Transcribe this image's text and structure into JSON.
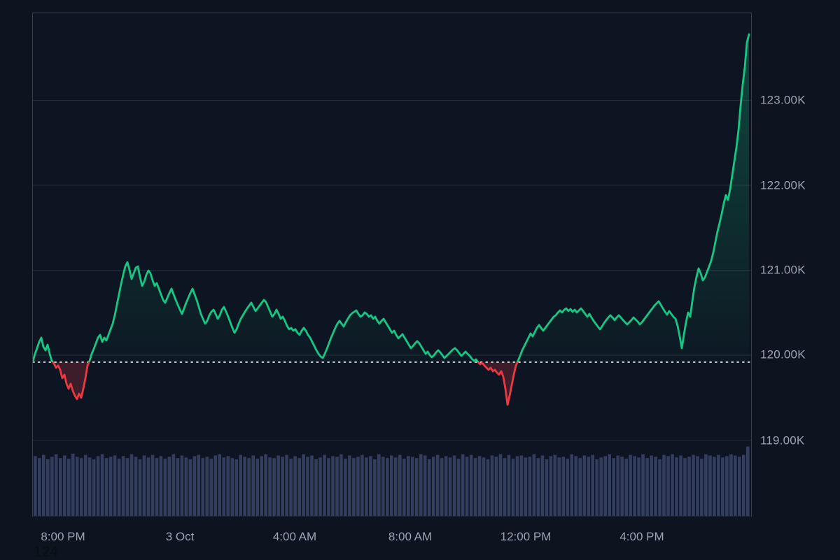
{
  "page": {
    "corner_text": "124"
  },
  "chart_data": {
    "type": "line",
    "style": "baseline-area price chart with volume pane, dark theme",
    "baseline_price": 119918,
    "baseline_note": "dotted previous-close line; line/area green above, red below",
    "ylim": [
      118100,
      124030
    ],
    "grid": "horizontal only",
    "colors": {
      "up_line": "#16c784",
      "up_fill_top": "rgba(22,199,132,0.30)",
      "up_fill_bottom": "rgba(22,199,132,0.02)",
      "down_line": "#ea3943",
      "down_fill": "rgba(234,57,67,0.22)",
      "baseline_dots": "#e8edf4",
      "gridline": "#232e3f",
      "volume_bar": "#333d5e",
      "background": "#0d1420",
      "axis_text": "#99a3b6"
    },
    "y_axis": {
      "values": [
        123000,
        122000,
        121000,
        120000,
        119000
      ],
      "labels": [
        "123.00K",
        "122.00K",
        "121.00K",
        "120.00K",
        "119.00K"
      ]
    },
    "x_axis": {
      "labels": [
        "8:00 PM",
        "3 Oct",
        "4:00 AM",
        "8:00 AM",
        "12:00 PM",
        "4:00 PM"
      ],
      "positions": [
        0.0429,
        0.2056,
        0.3655,
        0.5263,
        0.6871,
        0.8489
      ]
    },
    "prices": [
      119926,
      120016,
      120082,
      120156,
      120206,
      120099,
      120058,
      120123,
      120016,
      119934,
      119901,
      119852,
      119877,
      119827,
      119728,
      119770,
      119663,
      119605,
      119663,
      119580,
      119523,
      119482,
      119547,
      119498,
      119605,
      119728,
      119877,
      119934,
      120016,
      120074,
      120140,
      120206,
      120239,
      120156,
      120206,
      120173,
      120239,
      120305,
      120370,
      120469,
      120593,
      120716,
      120839,
      120946,
      121045,
      121095,
      121004,
      120897,
      120963,
      121029,
      121045,
      120922,
      120815,
      120864,
      120946,
      120996,
      120963,
      120881,
      120815,
      120848,
      120782,
      120716,
      120650,
      120617,
      120675,
      120732,
      120782,
      120716,
      120650,
      120593,
      120535,
      120486,
      120551,
      120617,
      120675,
      120732,
      120782,
      120716,
      120650,
      120568,
      120486,
      120428,
      120370,
      120403,
      120469,
      120510,
      120535,
      120486,
      120428,
      120469,
      120535,
      120568,
      120510,
      120453,
      120387,
      120321,
      120263,
      120305,
      120370,
      120428,
      120469,
      120510,
      120551,
      120584,
      120617,
      120568,
      120519,
      120551,
      120584,
      120617,
      120650,
      120625,
      120568,
      120510,
      120453,
      120486,
      120535,
      120486,
      120428,
      120453,
      120403,
      120346,
      120305,
      120321,
      120288,
      120305,
      120263,
      120239,
      120288,
      120321,
      120288,
      120239,
      120206,
      120156,
      120107,
      120058,
      120016,
      119984,
      119967,
      120016,
      120074,
      120140,
      120206,
      120263,
      120321,
      120370,
      120403,
      120370,
      120337,
      120387,
      120428,
      120469,
      120494,
      120510,
      120527,
      120486,
      120453,
      120469,
      120502,
      120486,
      120453,
      120469,
      120428,
      120453,
      120403,
      120370,
      120403,
      120428,
      120387,
      120346,
      120305,
      120263,
      120288,
      120239,
      120198,
      120222,
      120247,
      120206,
      120165,
      120123,
      120082,
      120107,
      120140,
      120165,
      120140,
      120099,
      120058,
      120016,
      120041,
      120000,
      119975,
      120000,
      120033,
      120058,
      120033,
      120000,
      119967,
      119992,
      120016,
      120041,
      120066,
      120082,
      120058,
      120025,
      119992,
      120016,
      120041,
      120016,
      119992,
      119959,
      119934,
      119951,
      119918,
      119893,
      119909,
      119877,
      119852,
      119827,
      119852,
      119811,
      119827,
      119794,
      119770,
      119811,
      119745,
      119605,
      119416,
      119523,
      119646,
      119770,
      119877,
      119934,
      119992,
      120058,
      120107,
      120156,
      120206,
      120255,
      120222,
      120272,
      120321,
      120354,
      120321,
      120288,
      120321,
      120354,
      120387,
      120420,
      120453,
      120469,
      120502,
      120527,
      120502,
      120535,
      120551,
      120519,
      120543,
      120510,
      120535,
      120502,
      120527,
      120551,
      120519,
      120486,
      120453,
      120486,
      120444,
      120403,
      120370,
      120337,
      120305,
      120337,
      120379,
      120412,
      120444,
      120469,
      120444,
      120412,
      120444,
      120469,
      120444,
      120412,
      120387,
      120362,
      120387,
      120412,
      120444,
      120420,
      120395,
      120362,
      120387,
      120420,
      120453,
      120486,
      120519,
      120551,
      120584,
      120609,
      120634,
      120593,
      120551,
      120510,
      120477,
      120519,
      120486,
      120453,
      120428,
      120346,
      120222,
      120082,
      120239,
      120387,
      120502,
      120453,
      120634,
      120798,
      120922,
      121021,
      120963,
      120881,
      120914,
      120979,
      121045,
      121111,
      121210,
      121333,
      121457,
      121556,
      121663,
      121786,
      121885,
      121827,
      121951,
      122115,
      122280,
      122444,
      122650,
      122938,
      123185,
      123391,
      123679,
      123777
    ],
    "volume_norm": [
      0.93,
      0.9,
      0.95,
      0.88,
      0.92,
      0.96,
      0.9,
      0.94,
      0.89,
      0.97,
      0.92,
      0.9,
      0.95,
      0.91,
      0.88,
      0.93,
      0.96,
      0.9,
      0.92,
      0.94,
      0.89,
      0.93,
      0.9,
      0.96,
      0.92,
      0.88,
      0.94,
      0.91,
      0.95,
      0.9,
      0.93,
      0.89,
      0.92,
      0.96,
      0.9,
      0.94,
      0.91,
      0.88,
      0.93,
      0.95,
      0.9,
      0.92,
      0.89,
      0.94,
      0.96,
      0.91,
      0.93,
      0.9,
      0.88,
      0.95,
      0.92,
      0.9,
      0.94,
      0.89,
      0.93,
      0.96,
      0.91,
      0.9,
      0.94,
      0.92,
      0.95,
      0.89,
      0.93,
      0.9,
      0.96,
      0.92,
      0.94,
      0.88,
      0.91,
      0.95,
      0.9,
      0.93,
      0.92,
      0.96,
      0.89,
      0.94,
      0.9,
      0.92,
      0.95,
      0.91,
      0.93,
      0.88,
      0.96,
      0.92,
      0.9,
      0.94,
      0.91,
      0.95,
      0.89,
      0.93,
      0.92,
      0.9,
      0.96,
      0.94,
      0.88,
      0.92,
      0.95,
      0.9,
      0.93,
      0.91,
      0.94,
      0.89,
      0.96,
      0.92,
      0.95,
      0.9,
      0.93,
      0.91,
      0.88,
      0.94,
      0.92,
      0.96,
      0.9,
      0.95,
      0.89,
      0.93,
      0.94,
      0.91,
      0.92,
      0.96,
      0.9,
      0.94,
      0.88,
      0.93,
      0.95,
      0.91,
      0.92,
      0.89,
      0.96,
      0.93,
      0.9,
      0.94,
      0.92,
      0.95,
      0.88,
      0.91,
      0.93,
      0.96,
      0.9,
      0.94,
      0.92,
      0.89,
      0.95,
      0.93,
      0.91,
      0.96,
      0.9,
      0.94,
      0.92,
      0.88,
      0.95,
      0.93,
      0.96,
      0.91,
      0.94,
      0.9,
      0.92,
      0.95,
      0.93,
      0.89,
      0.96,
      0.94,
      0.92,
      0.95,
      0.91,
      0.93,
      0.96,
      0.94,
      0.92,
      0.95,
      1.08
    ]
  }
}
